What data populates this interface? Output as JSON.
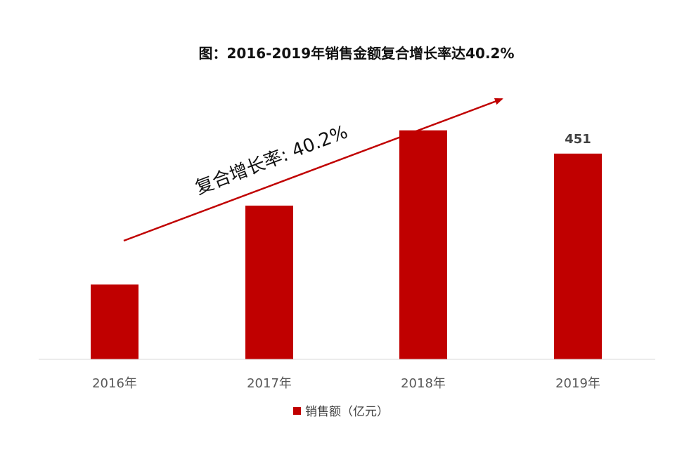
{
  "chart_data": {
    "type": "bar",
    "title": "图：2016-2019年销售金额复合增长率达40.2%",
    "categories": [
      "2016年",
      "2017年",
      "2018年",
      "2019年"
    ],
    "series": [
      {
        "name": "销售额（亿元）",
        "values": [
          164,
          337,
          502,
          451
        ],
        "color": "#C00000"
      }
    ],
    "data_labels": [
      "",
      "",
      "",
      "451"
    ],
    "annotation": "复合增长率: 40.2%",
    "arrow_color": "#C00000",
    "ylim": [
      0,
      620
    ],
    "grid": false,
    "legend_position": "bottom"
  }
}
